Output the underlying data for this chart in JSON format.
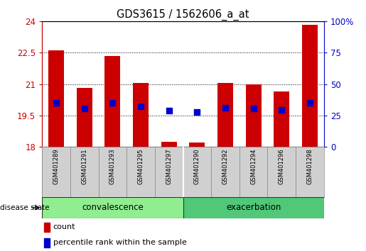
{
  "title": "GDS3615 / 1562606_a_at",
  "samples": [
    "GSM401289",
    "GSM401291",
    "GSM401293",
    "GSM401295",
    "GSM401297",
    "GSM401290",
    "GSM401292",
    "GSM401294",
    "GSM401296",
    "GSM401298"
  ],
  "count_values": [
    22.6,
    20.8,
    22.35,
    21.05,
    18.25,
    18.2,
    21.05,
    21.0,
    20.65,
    23.85
  ],
  "percentile_values": [
    20.1,
    19.85,
    20.1,
    19.92,
    19.73,
    19.68,
    19.88,
    19.85,
    19.75,
    20.1
  ],
  "ylim_left": [
    18,
    24
  ],
  "ylim_right": [
    0,
    100
  ],
  "yticks_left": [
    18,
    19.5,
    21,
    22.5,
    24
  ],
  "yticks_right": [
    0,
    25,
    50,
    75,
    100
  ],
  "ytick_labels_left": [
    "18",
    "19.5",
    "21",
    "22.5",
    "24"
  ],
  "ytick_labels_right": [
    "0",
    "25",
    "50",
    "75",
    "100%"
  ],
  "groups": [
    {
      "label": "convalescence",
      "indices": [
        0,
        1,
        2,
        3,
        4
      ],
      "color": "#90ee90"
    },
    {
      "label": "exacerbation",
      "indices": [
        5,
        6,
        7,
        8,
        9
      ],
      "color": "#50c878"
    }
  ],
  "bar_color": "#cc0000",
  "dot_color": "#0000cc",
  "bar_width": 0.55,
  "dot_size": 40,
  "baseline": 18,
  "group_label": "disease state",
  "legend_count": "count",
  "legend_percentile": "percentile rank within the sample",
  "background_color": "#ffffff",
  "plot_bg_color": "#ffffff",
  "tick_color_left": "#cc0000",
  "tick_color_right": "#0000cc",
  "label_area_color": "#d0d0d0"
}
